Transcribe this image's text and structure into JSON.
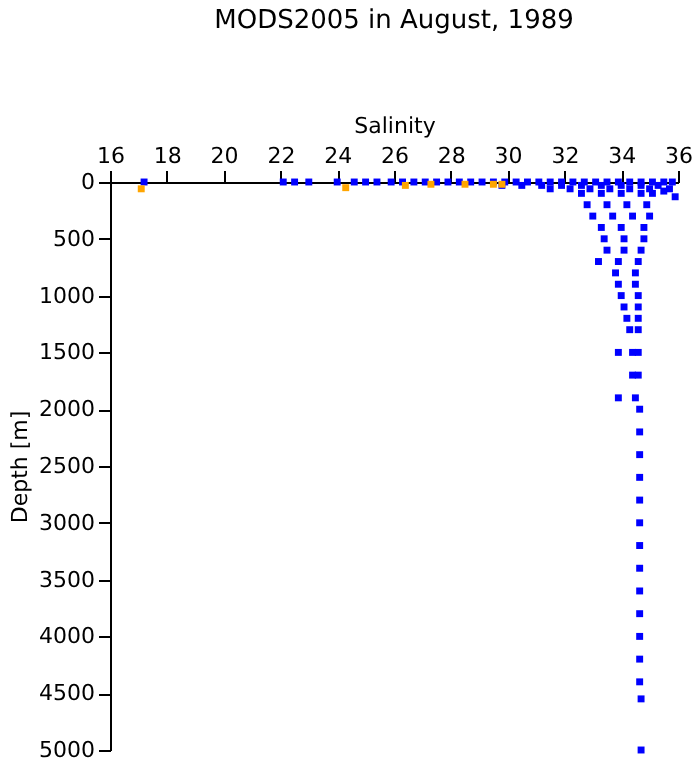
{
  "chart_data": {
    "type": "scatter",
    "title": "MODS2005 in August, 1989",
    "xlabel": "Salinity",
    "ylabel": "Depth [m]",
    "xlim": [
      16,
      36
    ],
    "xticks": [
      16,
      18,
      20,
      22,
      24,
      26,
      28,
      30,
      32,
      34,
      36
    ],
    "ylim": [
      5000,
      0
    ],
    "yticks": [
      0,
      500,
      1000,
      1500,
      2000,
      2500,
      3000,
      3500,
      4000,
      4500,
      5000
    ],
    "grid": false,
    "legend": false,
    "marker": "square",
    "series": [
      {
        "color": "#0000ff",
        "x": [
          17.2,
          22.1,
          22.5,
          23.0,
          24.0,
          24.6,
          25.0,
          25.4,
          25.9,
          26.3,
          26.7,
          27.1,
          27.5,
          27.9,
          28.3,
          28.7,
          29.1,
          29.5,
          29.9,
          30.3,
          30.7,
          31.1,
          31.5,
          31.9,
          32.3,
          32.7,
          33.1,
          33.5,
          33.9,
          34.3,
          34.7,
          35.1,
          35.5,
          35.8,
          29.8,
          30.5,
          31.2,
          31.9,
          32.6,
          33.3,
          34.0,
          34.7,
          35.3,
          31.5,
          32.2,
          32.9,
          33.6,
          34.3,
          35.0,
          35.7,
          35.5,
          35.9,
          32.6,
          33.3,
          34.0,
          34.7,
          35.1,
          32.8,
          33.5,
          34.2,
          34.9,
          33.0,
          33.7,
          34.4,
          35.0,
          33.3,
          34.0,
          34.8,
          33.4,
          34.1,
          34.8,
          33.5,
          34.1,
          34.7,
          33.2,
          33.9,
          34.6,
          33.8,
          34.5,
          33.9,
          34.5,
          34.0,
          34.6,
          34.1,
          34.6,
          34.2,
          34.6,
          34.3,
          34.6,
          33.9,
          34.4,
          34.6,
          34.4,
          34.6,
          33.9,
          34.5,
          34.65,
          34.65,
          34.65,
          34.65,
          34.65,
          34.65,
          34.65,
          34.65,
          34.65,
          34.65,
          34.65,
          34.65,
          34.65,
          34.7,
          34.7
        ],
        "values": [
          0,
          0,
          0,
          0,
          0,
          0,
          0,
          0,
          0,
          0,
          0,
          0,
          0,
          0,
          0,
          0,
          0,
          0,
          0,
          0,
          0,
          0,
          0,
          0,
          0,
          0,
          0,
          0,
          0,
          0,
          0,
          0,
          0,
          0,
          30,
          30,
          30,
          30,
          30,
          30,
          30,
          30,
          30,
          60,
          60,
          60,
          60,
          60,
          60,
          60,
          80,
          130,
          100,
          100,
          100,
          100,
          100,
          200,
          200,
          200,
          200,
          300,
          300,
          300,
          300,
          400,
          400,
          400,
          500,
          500,
          500,
          600,
          600,
          600,
          700,
          700,
          700,
          800,
          800,
          900,
          900,
          1000,
          1000,
          1100,
          1100,
          1200,
          1200,
          1300,
          1300,
          1500,
          1500,
          1500,
          1700,
          1700,
          1900,
          1900,
          2000,
          2200,
          2400,
          2600,
          2800,
          3000,
          3200,
          3400,
          3600,
          3800,
          4000,
          4200,
          4400,
          4550,
          5000
        ]
      },
      {
        "color": "#ffa500",
        "x": [
          17.1,
          24.3,
          26.4,
          27.3,
          28.5,
          29.5,
          29.8
        ],
        "values": [
          60,
          50,
          30,
          20,
          20,
          20,
          20
        ]
      }
    ]
  }
}
